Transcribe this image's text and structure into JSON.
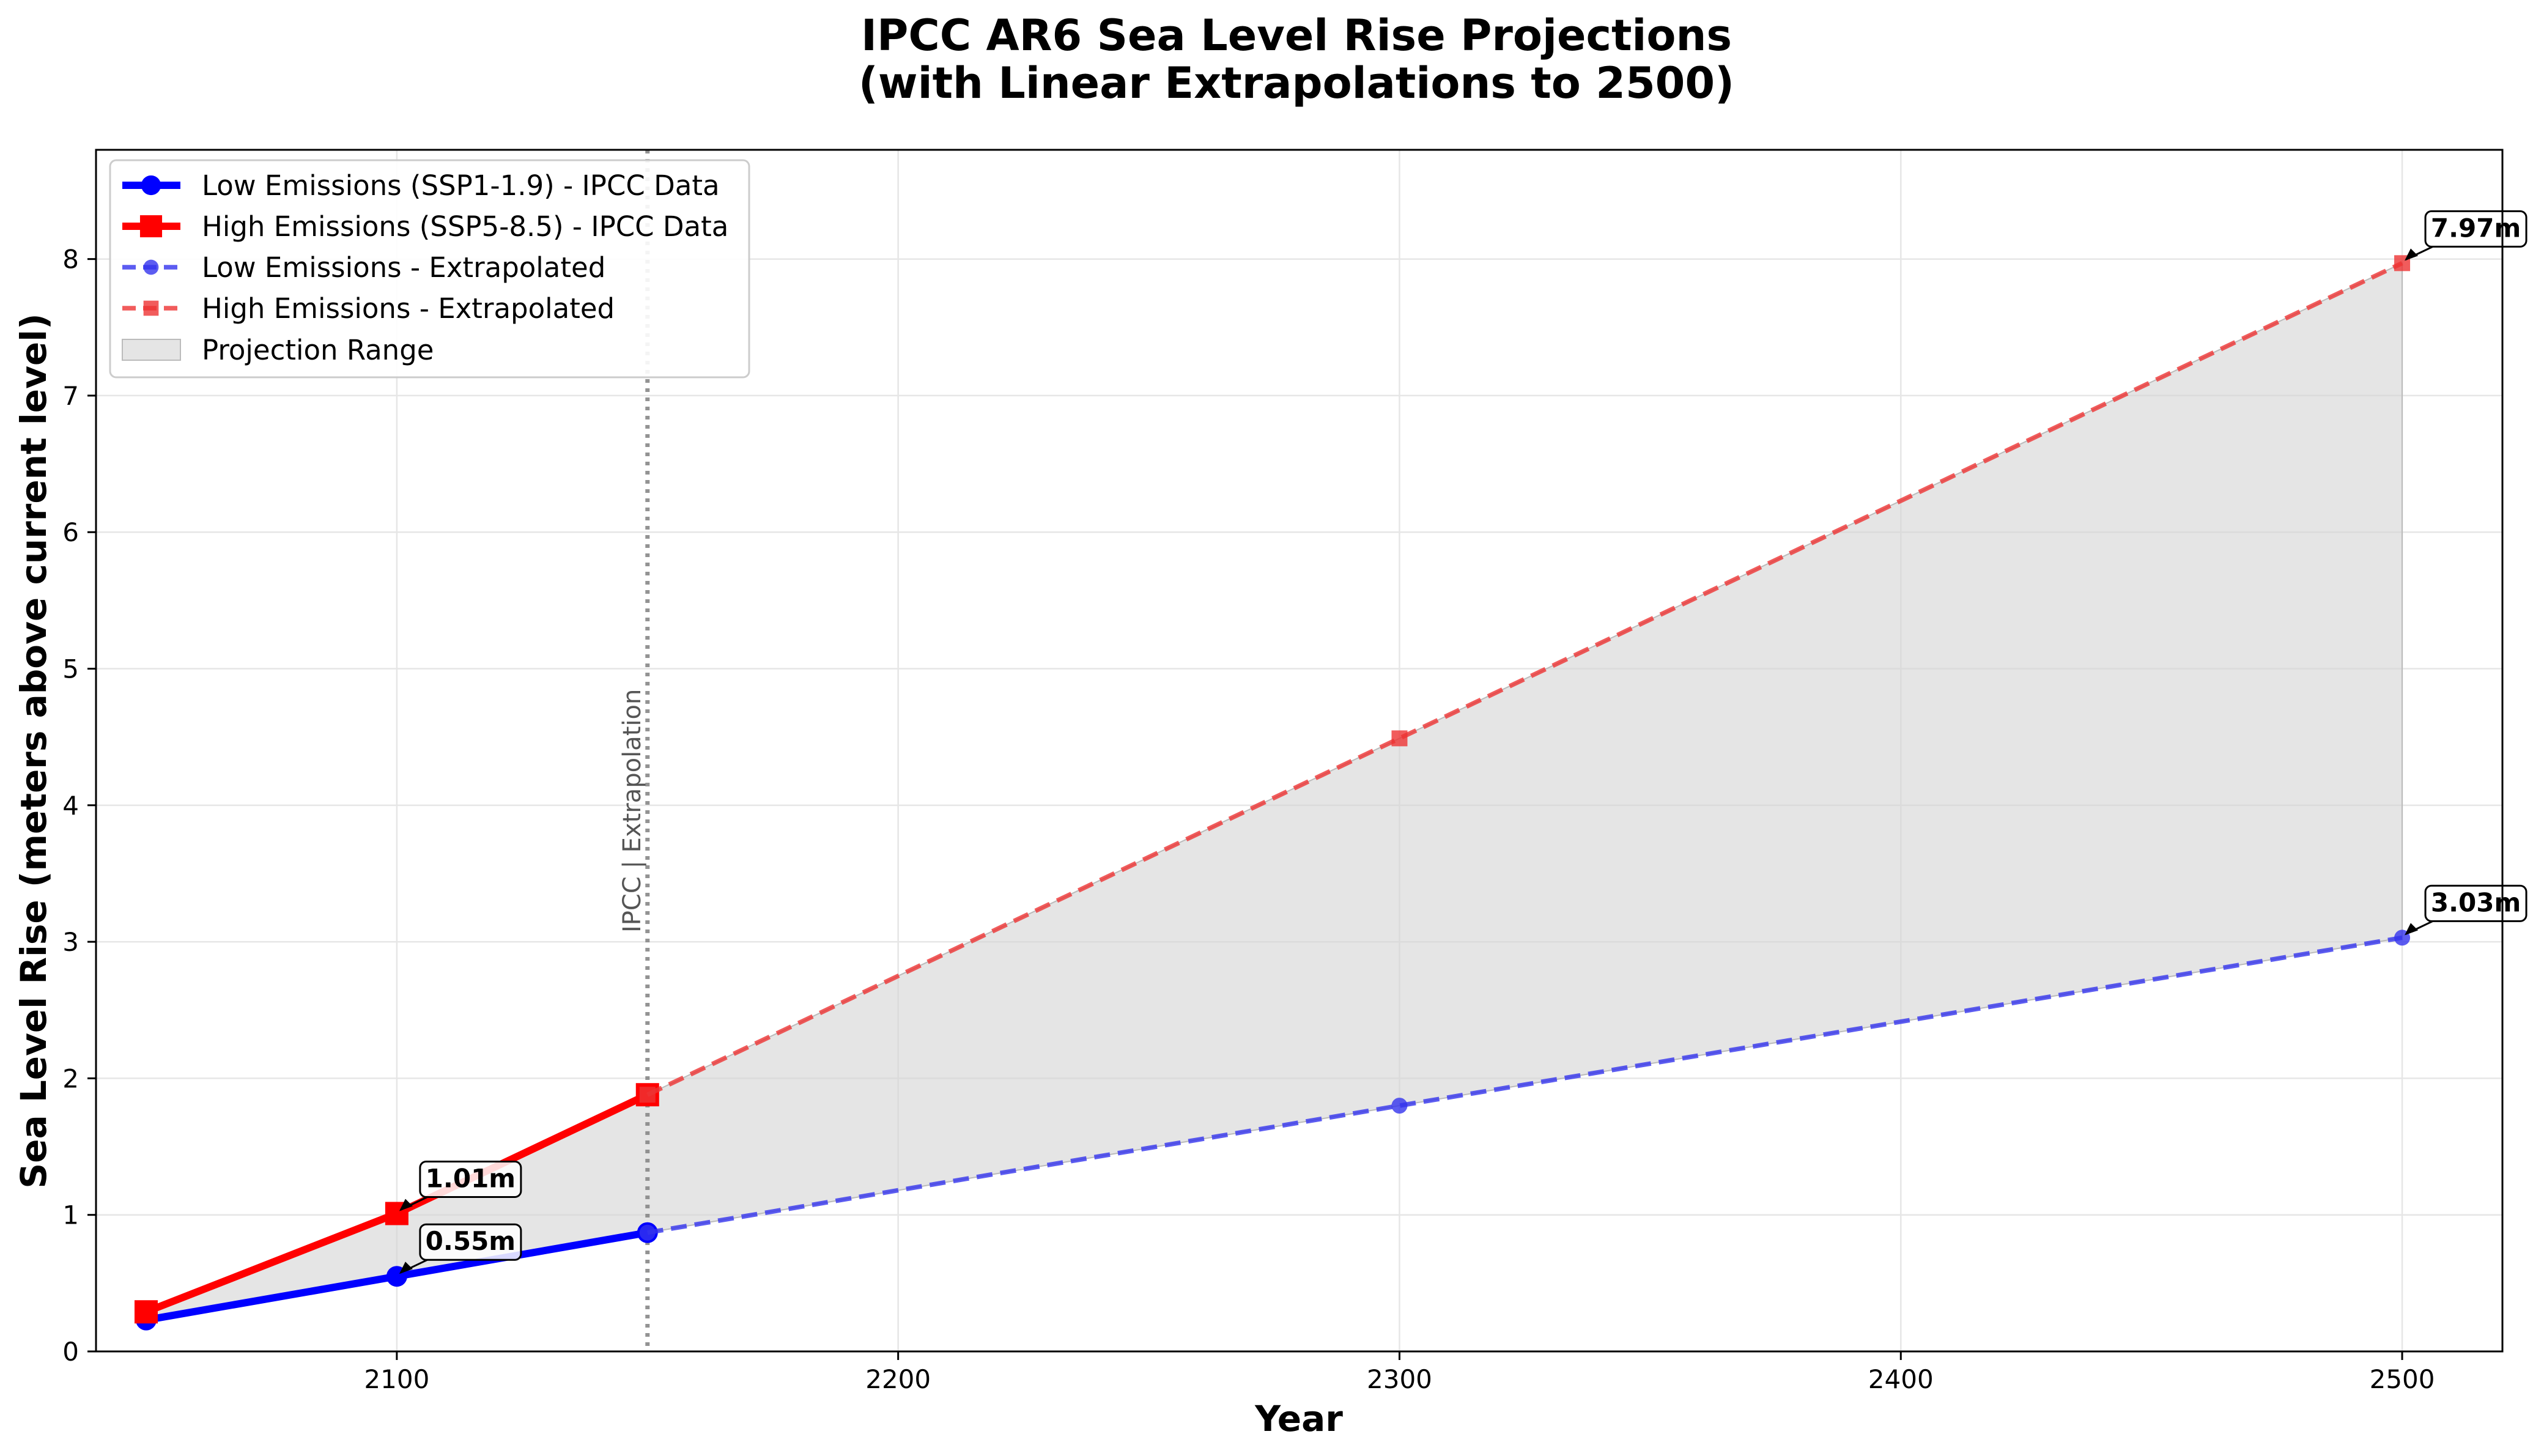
{
  "chart_data": {
    "type": "line",
    "title": [
      "IPCC AR6 Sea Level Rise Projections",
      "(with Linear Extrapolations to 2500)"
    ],
    "xlabel": "Year",
    "ylabel": "Sea Level Rise (meters above current level)",
    "xlim": [
      2040,
      2520
    ],
    "ylim": [
      0,
      8.8
    ],
    "xticks": [
      2100,
      2200,
      2300,
      2400,
      2500
    ],
    "yticks": [
      0,
      1,
      2,
      3,
      4,
      5,
      6,
      7,
      8
    ],
    "grid": true,
    "legend_position": "upper-left",
    "series": [
      {
        "name": "Low Emissions (SSP1-1.9) - IPCC Data",
        "color": "#0000ff",
        "style": "solid",
        "marker": "circle",
        "x": [
          2050,
          2100,
          2150
        ],
        "y": [
          0.23,
          0.55,
          0.87
        ]
      },
      {
        "name": "High Emissions (SSP5-8.5) - IPCC Data",
        "color": "#ff0000",
        "style": "solid",
        "marker": "square",
        "x": [
          2050,
          2100,
          2150
        ],
        "y": [
          0.29,
          1.01,
          1.88
        ]
      },
      {
        "name": "Low Emissions - Extrapolated",
        "color": "#3333ee",
        "style": "dashed",
        "marker": "circle",
        "x": [
          2150,
          2300,
          2500
        ],
        "y": [
          0.87,
          1.8,
          3.03
        ]
      },
      {
        "name": "High Emissions - Extrapolated",
        "color": "#ee3333",
        "style": "dashed",
        "marker": "square",
        "x": [
          2150,
          2300,
          2500
        ],
        "y": [
          1.88,
          4.49,
          7.97
        ]
      }
    ],
    "range_fill": {
      "name": "Projection Range",
      "color": "#d3d3d3"
    },
    "divider": {
      "x": 2150,
      "label": "IPCC | Extrapolation"
    },
    "annotations": [
      {
        "x": 2100,
        "y": 1.01,
        "text": "1.01m"
      },
      {
        "x": 2100,
        "y": 0.55,
        "text": "0.55m"
      },
      {
        "x": 2500,
        "y": 7.97,
        "text": "7.97m"
      },
      {
        "x": 2500,
        "y": 3.03,
        "text": "3.03m"
      }
    ]
  }
}
